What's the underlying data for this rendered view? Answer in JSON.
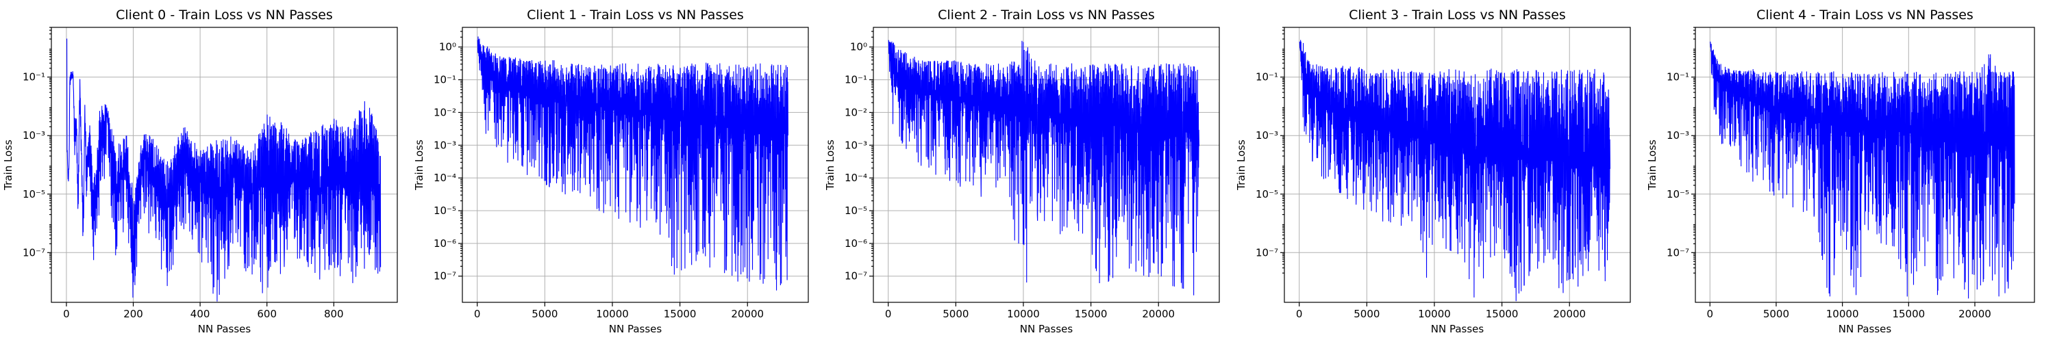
{
  "chart_data": [
    {
      "type": "line",
      "title": "Client 0 - Train Loss vs NN Passes",
      "xlabel": "NN Passes",
      "ylabel": "Train Loss",
      "yscale": "log",
      "grid": true,
      "xlim": [
        -45,
        990
      ],
      "ylim_log10": [
        -8.7,
        0.7
      ],
      "xticks": [
        0,
        200,
        400,
        600,
        800
      ],
      "yticks": [
        {
          "exp": -1,
          "label": "10⁻¹"
        },
        {
          "exp": -3,
          "label": "10⁻³"
        },
        {
          "exp": -5,
          "label": "10⁻⁵"
        },
        {
          "exp": -7,
          "label": "10⁻⁷"
        }
      ],
      "series": [
        {
          "color": "#0000ff",
          "x": [
            0,
            2,
            5,
            8,
            10,
            15,
            20,
            25,
            30,
            35,
            40,
            45,
            50,
            55,
            60,
            70,
            80,
            100,
            120,
            150,
            180,
            200,
            230,
            260,
            300,
            350,
            400,
            450,
            500,
            550,
            600,
            650,
            700,
            750,
            800,
            850,
            900,
            940
          ],
          "y_log10": [
            0.3,
            -3.4,
            -4.6,
            -4.0,
            -1.2,
            -1.0,
            -0.9,
            -3.5,
            -2.6,
            -5.5,
            -1.3,
            -3.6,
            -6.5,
            -2.4,
            -4.5,
            -3.1,
            -6.2,
            -3.8,
            -2.2,
            -5.0,
            -3.7,
            -7.0,
            -3.6,
            -4.7,
            -5.6,
            -4.0,
            -4.6,
            -5.2,
            -4.4,
            -5.1,
            -4.5,
            -4.9,
            -4.3,
            -5.0,
            -4.6,
            -4.8,
            -4.4,
            -5.3
          ],
          "y_min_log10": [
            0.3,
            -3.6,
            -4.8,
            -4.3,
            -1.6,
            -1.5,
            -1.4,
            -4.2,
            -3.0,
            -6.0,
            -2.0,
            -4.2,
            -7.5,
            -3.2,
            -5.2,
            -4.5,
            -7.5,
            -5.5,
            -4.0,
            -7.6,
            -5.8,
            -8.7,
            -6.0,
            -7.1,
            -8.2,
            -6.5,
            -7.5,
            -8.7,
            -7.0,
            -7.9,
            -8.7,
            -7.5,
            -7.2,
            -8.0,
            -7.5,
            -8.3,
            -7.4,
            -7.8
          ],
          "y_max_log10": [
            0.3,
            -3.2,
            -4.4,
            -3.8,
            -0.8,
            -0.8,
            -0.8,
            -2.5,
            -2.2,
            -5.0,
            -0.9,
            -3.0,
            -5.5,
            -1.8,
            -3.6,
            -2.3,
            -4.8,
            -2.0,
            -1.9,
            -3.3,
            -2.9,
            -5.0,
            -2.8,
            -3.0,
            -3.9,
            -2.6,
            -3.5,
            -3.1,
            -2.9,
            -3.6,
            -2.2,
            -2.6,
            -3.2,
            -2.7,
            -2.4,
            -2.6,
            -1.6,
            -3.3
          ]
        }
      ]
    },
    {
      "type": "line",
      "title": "Client 1 - Train Loss vs NN Passes",
      "xlabel": "NN Passes",
      "ylabel": "Train Loss",
      "yscale": "log",
      "grid": true,
      "xlim": [
        -1100,
        24500
      ],
      "ylim_log10": [
        -7.8,
        0.6
      ],
      "xticks": [
        0,
        5000,
        10000,
        15000,
        20000
      ],
      "yticks": [
        {
          "exp": 0,
          "label": "10⁰"
        },
        {
          "exp": -1,
          "label": "10⁻¹"
        },
        {
          "exp": -2,
          "label": "10⁻²"
        },
        {
          "exp": -3,
          "label": "10⁻³"
        },
        {
          "exp": -4,
          "label": "10⁻⁴"
        },
        {
          "exp": -5,
          "label": "10⁻⁵"
        },
        {
          "exp": -6,
          "label": "10⁻⁶"
        },
        {
          "exp": -7,
          "label": "10⁻⁷"
        }
      ],
      "series": [
        {
          "color": "#0000ff",
          "x": [
            0,
            300,
            600,
            1000,
            1500,
            2000,
            3000,
            4000,
            5000,
            6000,
            7000,
            8000,
            9000,
            10000,
            11000,
            12000,
            13000,
            14000,
            15000,
            16000,
            17000,
            18000,
            19000,
            20000,
            21000,
            22000,
            23000
          ],
          "y_log10": [
            0.2,
            -0.5,
            -0.8,
            -1.0,
            -1.1,
            -1.2,
            -1.3,
            -1.4,
            -1.5,
            -1.6,
            -1.7,
            -1.7,
            -1.8,
            -1.9,
            -2.0,
            -2.0,
            -2.1,
            -2.2,
            -2.2,
            -2.3,
            -2.3,
            -2.4,
            -2.4,
            -2.5,
            -2.5,
            -2.5,
            -2.6
          ],
          "y_min_log10": [
            0.0,
            -2.2,
            -2.7,
            -3.0,
            -3.2,
            -3.5,
            -3.7,
            -4.0,
            -4.2,
            -4.4,
            -4.6,
            -4.8,
            -5.0,
            -5.2,
            -5.3,
            -5.5,
            -5.8,
            -6.0,
            -7.8,
            -6.5,
            -6.7,
            -6.9,
            -7.0,
            -7.8,
            -7.2,
            -7.4,
            -7.8
          ],
          "y_max_log10": [
            0.35,
            0.3,
            0.1,
            -0.1,
            -0.2,
            -0.3,
            -0.3,
            -0.4,
            -0.4,
            -0.4,
            -0.5,
            -0.5,
            -0.5,
            -0.5,
            -0.5,
            -0.5,
            -0.5,
            -0.5,
            -0.5,
            -0.5,
            -0.4,
            -0.5,
            -0.5,
            -0.5,
            -0.5,
            -0.5,
            -0.5
          ]
        }
      ]
    },
    {
      "type": "line",
      "title": "Client 2 - Train Loss vs NN Passes",
      "xlabel": "NN Passes",
      "ylabel": "Train Loss",
      "yscale": "log",
      "grid": true,
      "xlim": [
        -1100,
        24500
      ],
      "ylim_log10": [
        -7.8,
        0.6
      ],
      "xticks": [
        0,
        5000,
        10000,
        15000,
        20000
      ],
      "yticks": [
        {
          "exp": 0,
          "label": "10⁰"
        },
        {
          "exp": -1,
          "label": "10⁻¹"
        },
        {
          "exp": -2,
          "label": "10⁻²"
        },
        {
          "exp": -3,
          "label": "10⁻³"
        },
        {
          "exp": -4,
          "label": "10⁻⁴"
        },
        {
          "exp": -5,
          "label": "10⁻⁵"
        },
        {
          "exp": -6,
          "label": "10⁻⁶"
        },
        {
          "exp": -7,
          "label": "10⁻⁷"
        }
      ],
      "series": [
        {
          "color": "#0000ff",
          "x": [
            0,
            300,
            600,
            1000,
            1500,
            2000,
            3000,
            4000,
            5000,
            6000,
            7000,
            8000,
            9000,
            10000,
            11000,
            12000,
            13000,
            14000,
            15000,
            16000,
            17000,
            18000,
            19000,
            20000,
            21000,
            22000,
            23000
          ],
          "y_log10": [
            0.2,
            -0.6,
            -0.9,
            -1.1,
            -1.2,
            -1.3,
            -1.4,
            -1.5,
            -1.6,
            -1.7,
            -1.8,
            -1.8,
            -1.9,
            -2.0,
            -2.0,
            -2.1,
            -2.2,
            -2.2,
            -2.3,
            -2.3,
            -2.4,
            -2.4,
            -2.5,
            -2.5,
            -2.6,
            -2.6,
            -2.7
          ],
          "y_min_log10": [
            0.0,
            -2.3,
            -2.8,
            -3.1,
            -3.3,
            -3.5,
            -3.8,
            -4.0,
            -4.2,
            -4.4,
            -4.6,
            -4.8,
            -5.0,
            -7.8,
            -5.3,
            -5.5,
            -5.8,
            -6.0,
            -6.2,
            -7.8,
            -6.6,
            -6.8,
            -7.0,
            -7.1,
            -7.3,
            -7.4,
            -7.8
          ],
          "y_max_log10": [
            0.35,
            0.3,
            0.0,
            -0.1,
            -0.2,
            -0.3,
            -0.4,
            -0.4,
            -0.4,
            -0.5,
            -0.5,
            -0.5,
            -0.5,
            0.3,
            -0.5,
            -0.5,
            -0.5,
            -0.5,
            -0.5,
            -0.5,
            -0.5,
            -0.5,
            -0.5,
            -0.5,
            -0.5,
            -0.5,
            -0.5
          ]
        }
      ]
    },
    {
      "type": "line",
      "title": "Client 3 - Train Loss vs NN Passes",
      "xlabel": "NN Passes",
      "ylabel": "Train Loss",
      "yscale": "log",
      "grid": true,
      "xlim": [
        -1100,
        24500
      ],
      "ylim_log10": [
        -8.7,
        0.7
      ],
      "xticks": [
        0,
        5000,
        10000,
        15000,
        20000
      ],
      "yticks": [
        {
          "exp": -1,
          "label": "10⁻¹"
        },
        {
          "exp": -3,
          "label": "10⁻³"
        },
        {
          "exp": -5,
          "label": "10⁻⁵"
        },
        {
          "exp": -7,
          "label": "10⁻⁷"
        }
      ],
      "series": [
        {
          "color": "#0000ff",
          "x": [
            0,
            300,
            600,
            1000,
            1500,
            2000,
            3000,
            4000,
            5000,
            6000,
            7000,
            8000,
            9000,
            10000,
            11000,
            12000,
            13000,
            14000,
            15000,
            16000,
            17000,
            18000,
            19000,
            20000,
            21000,
            22000,
            23000
          ],
          "y_log10": [
            0.2,
            -0.9,
            -1.3,
            -1.6,
            -1.8,
            -2.0,
            -2.2,
            -2.4,
            -2.6,
            -2.7,
            -2.9,
            -3.0,
            -3.1,
            -3.2,
            -3.3,
            -3.4,
            -3.5,
            -3.6,
            -3.6,
            -3.7,
            -3.8,
            -3.8,
            -3.9,
            -3.9,
            -4.0,
            -4.0,
            -4.1
          ],
          "y_min_log10": [
            0.0,
            -2.8,
            -3.4,
            -3.9,
            -4.3,
            -4.6,
            -5.0,
            -5.3,
            -5.6,
            -5.9,
            -6.1,
            -6.3,
            -8.7,
            -6.7,
            -6.9,
            -7.1,
            -8.7,
            -7.4,
            -7.5,
            -8.7,
            -7.8,
            -7.9,
            -8.7,
            -8.1,
            -8.2,
            -8.7,
            -8.4
          ],
          "y_max_log10": [
            0.35,
            0.2,
            -0.3,
            -0.5,
            -0.6,
            -0.6,
            -0.6,
            -0.6,
            -0.7,
            -0.7,
            -0.7,
            -0.7,
            -0.7,
            -0.7,
            -0.7,
            -0.7,
            -0.7,
            -0.7,
            -0.7,
            -0.7,
            -0.7,
            -0.7,
            -0.7,
            -0.7,
            -0.7,
            -0.7,
            -0.7
          ]
        }
      ]
    },
    {
      "type": "line",
      "title": "Client 4 - Train Loss vs NN Passes",
      "xlabel": "NN Passes",
      "ylabel": "Train Loss",
      "yscale": "log",
      "grid": true,
      "xlim": [
        -1100,
        24500
      ],
      "ylim_log10": [
        -8.7,
        0.7
      ],
      "xticks": [
        0,
        5000,
        10000,
        15000,
        20000
      ],
      "yticks": [
        {
          "exp": -1,
          "label": "10⁻¹"
        },
        {
          "exp": -3,
          "label": "10⁻³"
        },
        {
          "exp": -5,
          "label": "10⁻⁵"
        },
        {
          "exp": -7,
          "label": "10⁻⁷"
        }
      ],
      "series": [
        {
          "color": "#0000ff",
          "x": [
            0,
            300,
            600,
            1000,
            1500,
            2000,
            3000,
            4000,
            5000,
            6000,
            7000,
            8000,
            9000,
            10000,
            11000,
            12000,
            13000,
            14000,
            15000,
            16000,
            17000,
            18000,
            19000,
            20000,
            21000,
            22000,
            23000
          ],
          "y_log10": [
            0.2,
            -0.8,
            -1.1,
            -1.3,
            -1.5,
            -1.6,
            -1.8,
            -2.0,
            -2.1,
            -2.2,
            -2.3,
            -2.4,
            -2.5,
            -2.6,
            -2.6,
            -2.7,
            -2.8,
            -2.8,
            -2.9,
            -3.0,
            -3.0,
            -3.1,
            -3.1,
            -3.2,
            -3.2,
            -3.3,
            -3.3
          ],
          "y_min_log10": [
            0.0,
            -2.5,
            -3.0,
            -3.4,
            -3.8,
            -4.1,
            -4.5,
            -4.8,
            -5.1,
            -5.4,
            -5.6,
            -5.8,
            -8.7,
            -6.2,
            -8.7,
            -6.5,
            -6.7,
            -6.8,
            -8.7,
            -7.1,
            -8.7,
            -7.3,
            -8.7,
            -8.7,
            -7.6,
            -8.7,
            -7.8
          ],
          "y_max_log10": [
            0.35,
            -0.1,
            -0.4,
            -0.6,
            -0.7,
            -0.7,
            -0.7,
            -0.8,
            -0.8,
            -0.8,
            -0.8,
            -0.8,
            -0.8,
            -0.8,
            -0.8,
            -0.8,
            -0.8,
            -0.8,
            -0.8,
            -0.8,
            -0.8,
            -0.8,
            -0.8,
            -0.8,
            0.0,
            -0.8,
            -0.8
          ]
        }
      ]
    }
  ]
}
